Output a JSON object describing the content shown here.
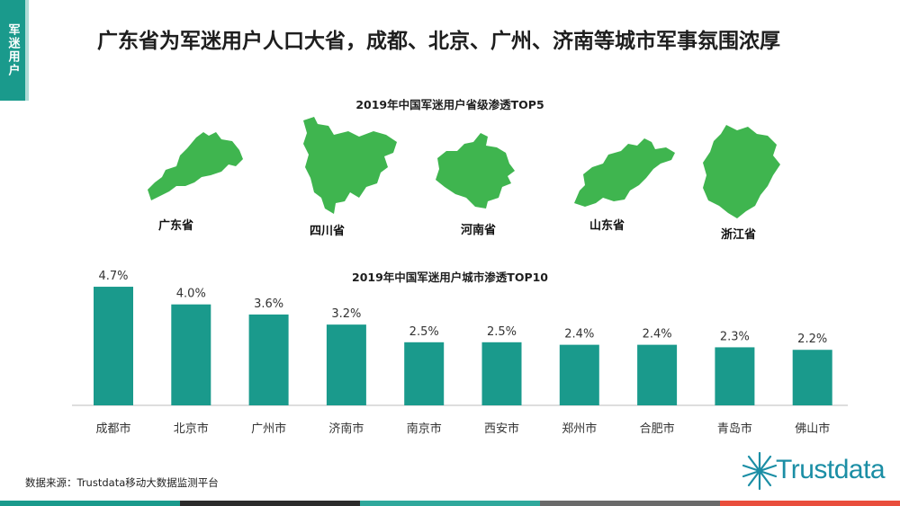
{
  "side_tag": "军迷用户",
  "headline": "广东省为军迷用户人口大省，成都、北京、广州、济南等城市军事氛围浓厚",
  "maps": {
    "title": "2019年中国军迷用户省级渗透TOP5",
    "provinces": [
      {
        "name": "广东省",
        "shape": "guangdong-map-icon"
      },
      {
        "name": "四川省",
        "shape": "sichuan-map-icon"
      },
      {
        "name": "河南省",
        "shape": "henan-map-icon"
      },
      {
        "name": "山东省",
        "shape": "shandong-map-icon"
      },
      {
        "name": "浙江省",
        "shape": "zhejiang-map-icon"
      }
    ],
    "fill_color": "#3fb54f"
  },
  "chart_data": {
    "type": "bar",
    "title": "2019年中国军迷用户城市渗透TOP10",
    "categories": [
      "成都市",
      "北京市",
      "广州市",
      "济南市",
      "南京市",
      "西安市",
      "郑州市",
      "合肥市",
      "青岛市",
      "佛山市"
    ],
    "values": [
      4.7,
      4.0,
      3.6,
      3.2,
      2.5,
      2.5,
      2.4,
      2.4,
      2.3,
      2.2
    ],
    "value_labels": [
      "4.7%",
      "4.0%",
      "3.6%",
      "3.2%",
      "2.5%",
      "2.5%",
      "2.4%",
      "2.4%",
      "2.3%",
      "2.2%"
    ],
    "ylim": [
      0,
      5.2
    ],
    "bar_color": "#1a9a8c",
    "grid": false,
    "legend": "none"
  },
  "source": "数据来源：Trustdata移动大数据监测平台",
  "logo": {
    "text": "Trustdata",
    "icon": "starburst-icon"
  },
  "colors": {
    "accent": "#1a9a8c",
    "footer": [
      "#1a9a8c",
      "#2b2b2b",
      "#2fa89c",
      "#6a6a6a",
      "#e94e3c"
    ]
  }
}
